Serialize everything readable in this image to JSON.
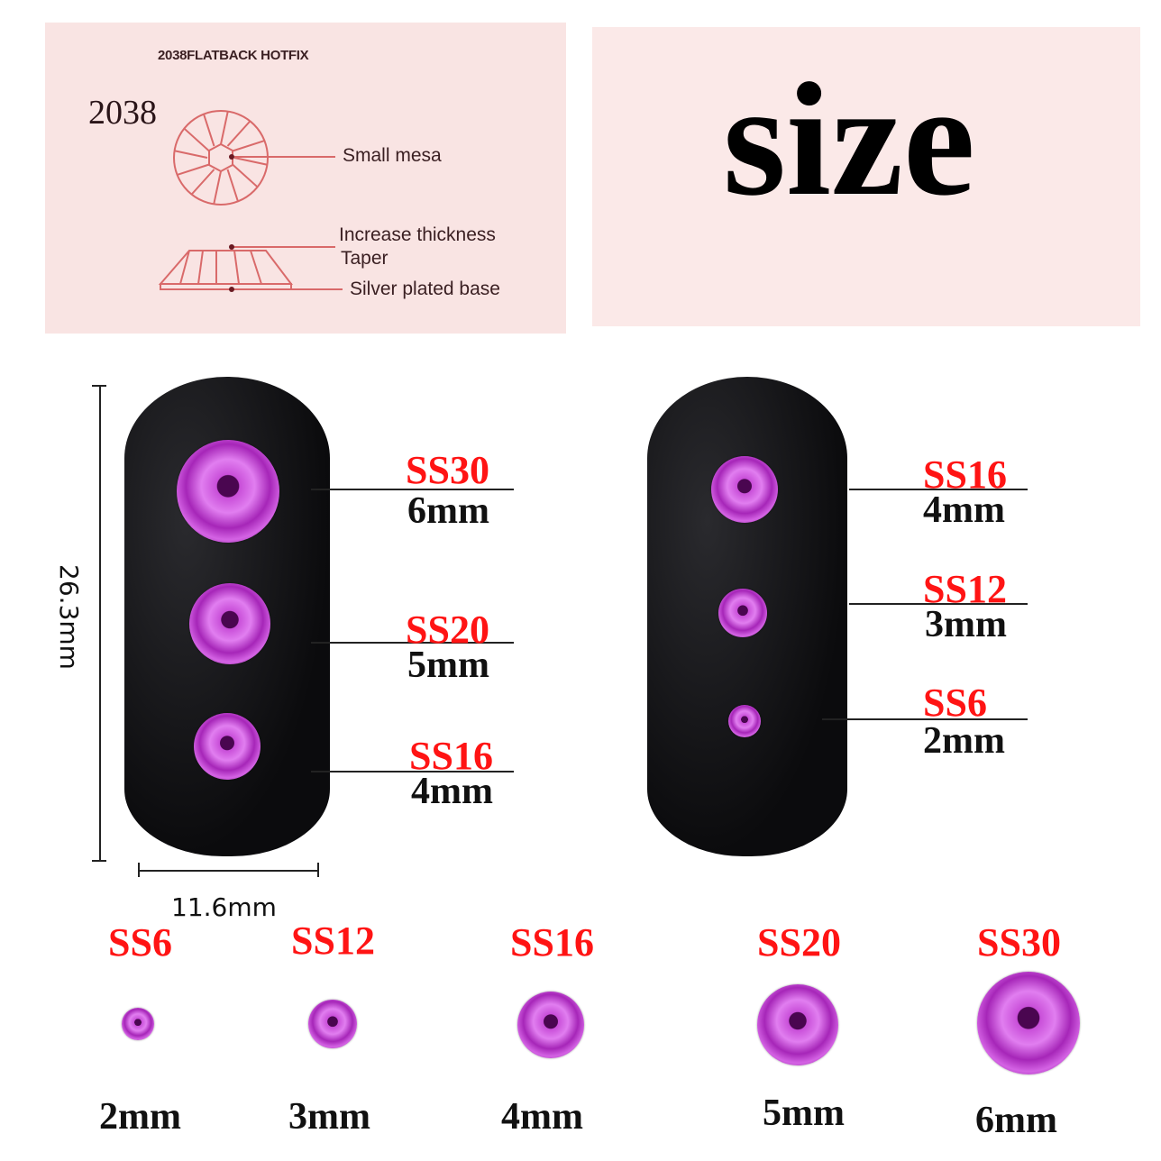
{
  "diagram": {
    "header": "2038FLATBACK HOTFIX",
    "model": "2038",
    "labels": {
      "mesa": "Small mesa",
      "thickness": "Increase thickness",
      "taper": "Taper",
      "base": "Silver plated base"
    }
  },
  "title": "size",
  "dimensions": {
    "height": "26.3mm",
    "width": "11.6mm"
  },
  "nail_left": [
    {
      "ss": "SS30",
      "mm": "6mm"
    },
    {
      "ss": "SS20",
      "mm": "5mm"
    },
    {
      "ss": "SS16",
      "mm": "4mm"
    }
  ],
  "nail_right": [
    {
      "ss": "SS16",
      "mm": "4mm"
    },
    {
      "ss": "SS12",
      "mm": "3mm"
    },
    {
      "ss": "SS6",
      "mm": "2mm"
    }
  ],
  "size_row": [
    {
      "ss": "SS6",
      "mm": "2mm"
    },
    {
      "ss": "SS12",
      "mm": "3mm"
    },
    {
      "ss": "SS16",
      "mm": "4mm"
    },
    {
      "ss": "SS20",
      "mm": "5mm"
    },
    {
      "ss": "SS30",
      "mm": "6mm"
    }
  ],
  "colors": {
    "label_red": "#ff1414",
    "gem": "#c84ed8",
    "panel": "#f9e4e3",
    "diagram_line": "#d96a6a"
  }
}
